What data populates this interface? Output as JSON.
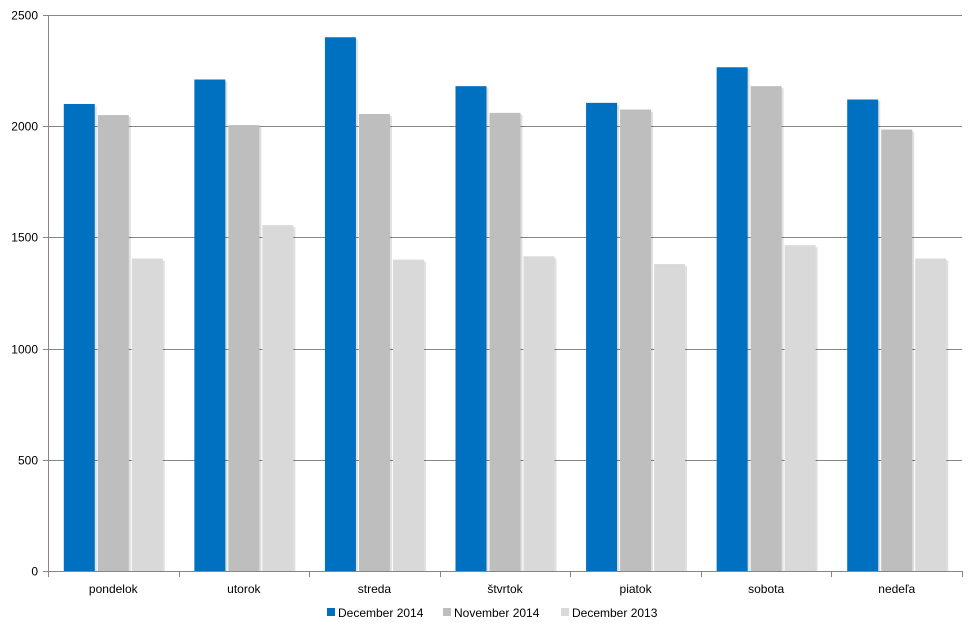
{
  "chart_data": {
    "type": "bar",
    "title": "",
    "xlabel": "",
    "ylabel": "",
    "categories": [
      "pondelok",
      "utorok",
      "streda",
      "štvrtok",
      "piatok",
      "sobota",
      "nedeľa"
    ],
    "series": [
      {
        "name": "December 2014",
        "color": "#0070C0",
        "values": [
          2100,
          2210,
          2400,
          2180,
          2105,
          2265,
          2120
        ]
      },
      {
        "name": "November 2014",
        "color": "#BEBEBE",
        "values": [
          2050,
          2005,
          2055,
          2060,
          2075,
          2180,
          1985
        ]
      },
      {
        "name": "December 2013",
        "color": "#D9D9D9",
        "values": [
          1405,
          1555,
          1400,
          1415,
          1380,
          1465,
          1405
        ]
      }
    ],
    "ylim": [
      0,
      2500
    ],
    "yticks": [
      0,
      500,
      1000,
      1500,
      2000,
      2500
    ],
    "grid": true,
    "legend_position": "bottom"
  }
}
